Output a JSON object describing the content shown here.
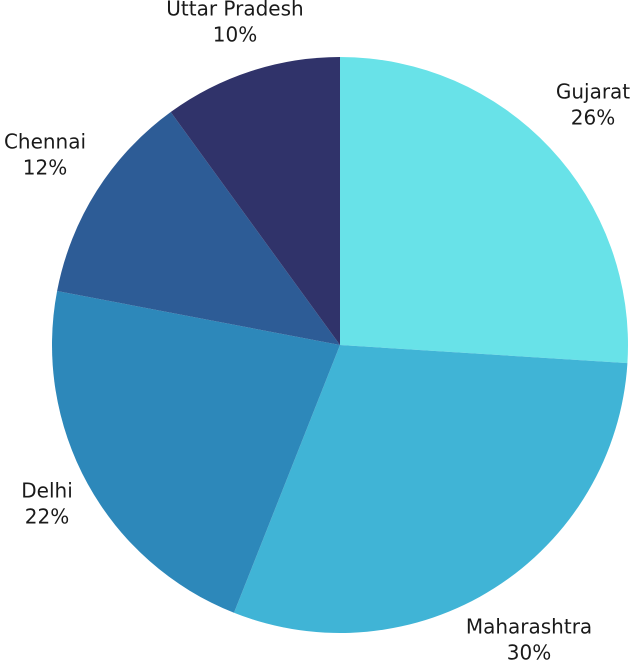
{
  "chart_data": {
    "type": "pie",
    "title": "",
    "start_angle_deg": 0,
    "direction": "clockwise",
    "slices": [
      {
        "label": "Gujarat",
        "value": 26,
        "value_label": "26%",
        "color": "#68e2e8"
      },
      {
        "label": "Maharashtra",
        "value": 30,
        "value_label": "30%",
        "color": "#40b4d6"
      },
      {
        "label": "Delhi",
        "value": 22,
        "value_label": "22%",
        "color": "#2d88ba"
      },
      {
        "label": "Chennai",
        "value": 12,
        "value_label": "12%",
        "color": "#2d5c96"
      },
      {
        "label": "Uttar Pradesh",
        "value": 10,
        "value_label": "10%",
        "color": "#30336a"
      }
    ]
  }
}
